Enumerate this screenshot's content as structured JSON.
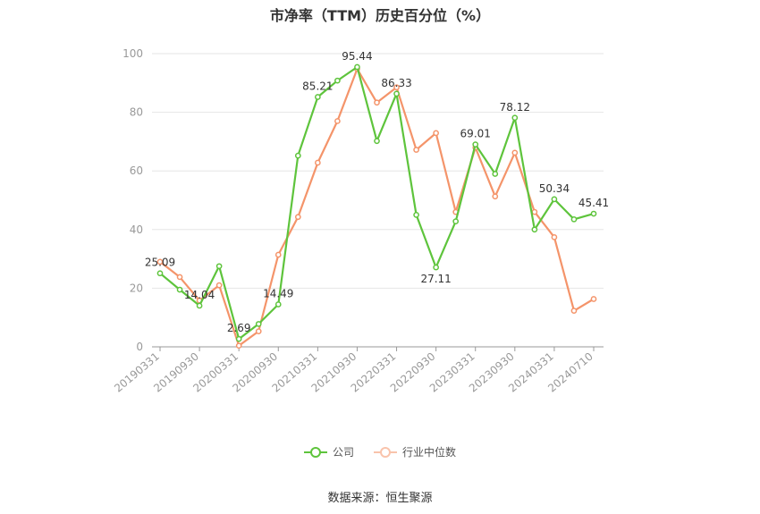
{
  "chart_data": {
    "type": "line",
    "title": "市净率（TTM）历史百分位（%）",
    "source": "数据来源：恒生聚源",
    "ylim": [
      0,
      100
    ],
    "yticks": [
      0,
      20,
      40,
      60,
      80,
      100
    ],
    "x": [
      "20190331",
      "20190630",
      "20190930",
      "20191231",
      "20200331",
      "20200630",
      "20200930",
      "20201231",
      "20210331",
      "20210630",
      "20210930",
      "20211231",
      "20220331",
      "20220630",
      "20220930",
      "20221231",
      "20230331",
      "20230630",
      "20230930",
      "20231231",
      "20240331",
      "20240630",
      "20240710"
    ],
    "xtick_labels": [
      "20190331",
      "20190930",
      "20200331",
      "20200930",
      "20210331",
      "20210930",
      "20220331",
      "20220930",
      "20230331",
      "20230930",
      "20240331",
      "20240710"
    ],
    "grid": true,
    "legend_position": "bottom",
    "series": [
      {
        "name": "公司",
        "color": "#5ec43c",
        "values": [
          25.09,
          19.5,
          14.04,
          27.5,
          2.69,
          7.8,
          14.49,
          65.2,
          85.21,
          90.8,
          95.44,
          70.2,
          86.33,
          45.0,
          27.11,
          42.8,
          69.01,
          59.0,
          78.12,
          40.0,
          50.34,
          43.5,
          45.41
        ],
        "labels": {
          "0": "25.09",
          "2": "14.04",
          "4": "2.69",
          "6": "14.49",
          "8": "85.21",
          "10": "95.44",
          "12": "86.33",
          "14": "27.11",
          "16": "69.01",
          "18": "78.12",
          "20": "50.34",
          "22": "45.41"
        }
      },
      {
        "name": "行业中位数",
        "color": "#f4946a",
        "values": [
          29.0,
          23.8,
          15.8,
          21.0,
          0.4,
          5.3,
          31.4,
          44.3,
          62.8,
          77.0,
          94.8,
          83.3,
          88.5,
          67.2,
          72.9,
          46.0,
          68.0,
          51.3,
          66.2,
          46.0,
          37.4,
          12.3,
          16.3
        ]
      }
    ]
  }
}
